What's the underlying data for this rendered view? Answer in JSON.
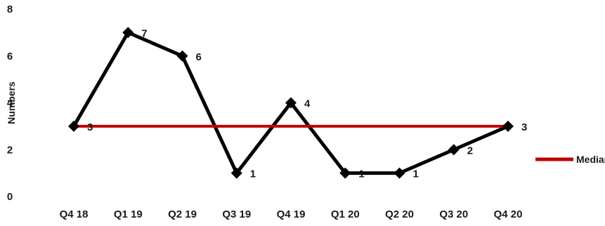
{
  "chart_data": {
    "type": "line",
    "categories": [
      "Q4 18",
      "Q1 19",
      "Q2 19",
      "Q3 19",
      "Q4 19",
      "Q1 20",
      "Q2 20",
      "Q3 20",
      "Q4 20"
    ],
    "series": [
      {
        "values": [
          3,
          7,
          6,
          1,
          4,
          1,
          1,
          2,
          3
        ],
        "color": "#000000",
        "marker": "diamond",
        "data_labels": true
      },
      {
        "name": "Median",
        "values": [
          3,
          3,
          3,
          3,
          3,
          3,
          3,
          3,
          3
        ],
        "color": "#c00000"
      }
    ],
    "ylabel": "Numbers",
    "xlabel": "",
    "ylim": [
      0,
      8
    ],
    "yticks": [
      0,
      2,
      4,
      6,
      8
    ],
    "grid": false,
    "legend": {
      "position": "right",
      "entries": [
        "Median"
      ]
    }
  }
}
